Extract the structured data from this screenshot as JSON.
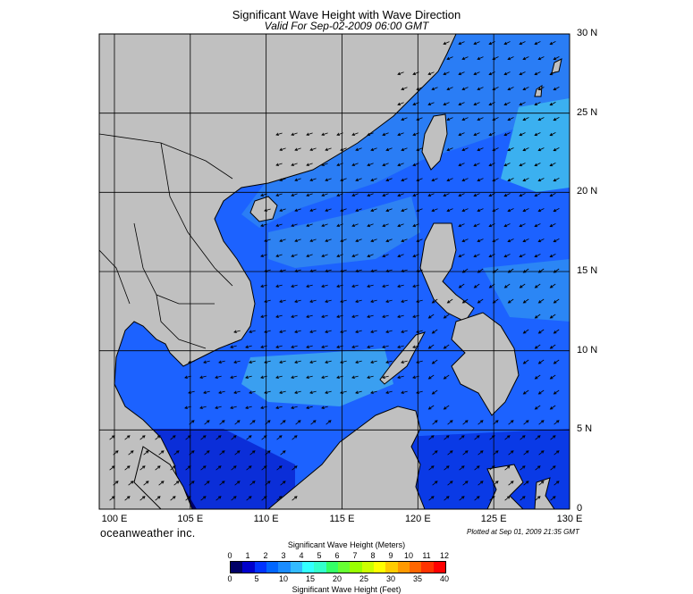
{
  "title": "Significant Wave Height with Wave Direction",
  "subtitle": "Valid For Sep-02-2009 06:00 GMT",
  "brand": "oceanweather inc.",
  "plotted_note": "Plotted at Sep 01, 2009 21:35 GMT",
  "map": {
    "lon_range": [
      99,
      130
    ],
    "lat_range": [
      0,
      30
    ],
    "lat_labels": [
      "30 N",
      "25 N",
      "20 N",
      "15 N",
      "10 N",
      "5 N",
      "0"
    ],
    "lon_labels": [
      "100 E",
      "105 E",
      "110 E",
      "115 E",
      "120 E",
      "125 E",
      "130 E"
    ],
    "land_color": "#c0c0c0",
    "grid_color": "#000000"
  },
  "legend": {
    "meters_title": "Significant Wave Height (Meters)",
    "feet_title": "Significant Wave Height (Feet)",
    "meters_ticks": [
      "0",
      "1",
      "2",
      "3",
      "4",
      "5",
      "6",
      "7",
      "8",
      "9",
      "10",
      "11",
      "12"
    ],
    "feet_ticks": [
      "0",
      "5",
      "10",
      "15",
      "20",
      "25",
      "30",
      "35",
      "40"
    ],
    "colors": [
      "#000066",
      "#0000cc",
      "#0033ff",
      "#0066ff",
      "#1a8cff",
      "#33bbff",
      "#33ffff",
      "#33ffcc",
      "#33ff66",
      "#66ff33",
      "#99ff00",
      "#ccff00",
      "#ffff00",
      "#ffcc00",
      "#ff9900",
      "#ff6600",
      "#ff3300",
      "#ff0000"
    ]
  }
}
